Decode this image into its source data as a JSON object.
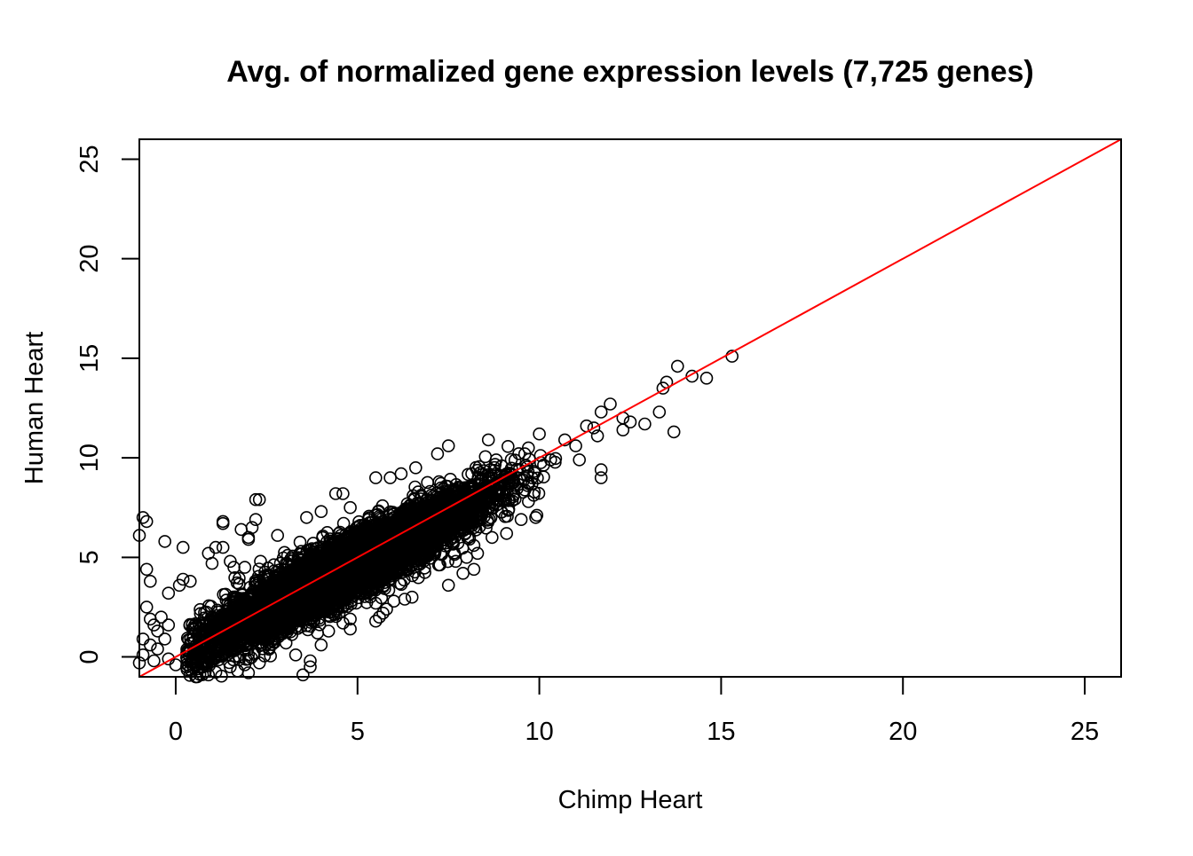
{
  "chart_data": {
    "type": "scatter",
    "title": "Avg. of normalized gene expression levels (7,725 genes)",
    "xlabel": "Chimp Heart",
    "ylabel": "Human Heart",
    "xlim": [
      -1,
      26
    ],
    "ylim": [
      -1,
      26
    ],
    "xticks": [
      0,
      5,
      10,
      15,
      20,
      25
    ],
    "yticks": [
      0,
      5,
      10,
      15,
      20,
      25
    ],
    "xtick_labels": [
      "0",
      "5",
      "10",
      "15",
      "20",
      "25"
    ],
    "ytick_labels": [
      "0",
      "5",
      "10",
      "15",
      "20",
      "25"
    ],
    "grid": false,
    "legend": "none",
    "n_genes": 7725,
    "marker": "open-circle",
    "marker_color": "#000000",
    "reference_line": {
      "type": "identity",
      "slope": 1,
      "intercept": 0,
      "color": "#ff0000"
    },
    "main_cloud": {
      "description_free_params": true,
      "x_center_mean": 4.6,
      "x_center_sd": 1.9,
      "x_range": [
        0.3,
        10.5
      ],
      "residual_sd": 0.75,
      "bias_per_unit": -0.06
    },
    "series": [
      {
        "values_x_y": [
          [
            15.3,
            15.1
          ],
          [
            13.8,
            14.6
          ],
          [
            14.2,
            14.1
          ],
          [
            14.6,
            14.0
          ],
          [
            13.5,
            13.8
          ],
          [
            13.4,
            13.5
          ],
          [
            13.3,
            12.3
          ],
          [
            13.7,
            11.3
          ],
          [
            12.9,
            11.7
          ],
          [
            12.5,
            11.8
          ],
          [
            12.3,
            12.0
          ],
          [
            12.3,
            11.4
          ],
          [
            11.95,
            12.7
          ],
          [
            11.7,
            12.3
          ],
          [
            11.5,
            11.5
          ],
          [
            11.3,
            11.6
          ],
          [
            11.6,
            11.1
          ],
          [
            11.7,
            9.4
          ],
          [
            11.7,
            9.0
          ],
          [
            11.0,
            10.6
          ],
          [
            10.7,
            10.9
          ],
          [
            10.0,
            11.2
          ],
          [
            9.7,
            10.5
          ],
          [
            9.6,
            10.2
          ],
          [
            11.1,
            9.9
          ],
          [
            9.8,
            9.0
          ],
          [
            9.8,
            8.7
          ],
          [
            9.7,
            7.8
          ],
          [
            9.5,
            6.9
          ],
          [
            9.9,
            7.0
          ],
          [
            8.6,
            10.9
          ],
          [
            7.5,
            10.6
          ],
          [
            7.2,
            10.2
          ],
          [
            6.6,
            9.5
          ],
          [
            6.2,
            9.2
          ],
          [
            5.9,
            9.0
          ],
          [
            5.5,
            9.0
          ],
          [
            4.6,
            8.2
          ],
          [
            4.4,
            8.2
          ],
          [
            4.8,
            7.5
          ],
          [
            4.0,
            7.3
          ],
          [
            3.6,
            7.0
          ],
          [
            2.3,
            7.9
          ],
          [
            2.2,
            7.9
          ],
          [
            2.2,
            6.9
          ],
          [
            2.1,
            6.5
          ],
          [
            1.3,
            6.8
          ],
          [
            1.3,
            6.7
          ],
          [
            1.8,
            6.4
          ],
          [
            2.0,
            6.0
          ],
          [
            2.0,
            5.9
          ],
          [
            2.8,
            6.1
          ],
          [
            1.3,
            5.5
          ],
          [
            1.1,
            5.5
          ],
          [
            0.9,
            5.2
          ],
          [
            1.0,
            4.7
          ],
          [
            1.5,
            4.8
          ],
          [
            1.6,
            4.5
          ],
          [
            1.9,
            4.5
          ],
          [
            0.2,
            5.5
          ],
          [
            -0.3,
            5.8
          ],
          [
            -1.0,
            6.1
          ],
          [
            -0.9,
            7.0
          ],
          [
            -0.8,
            6.8
          ],
          [
            -0.8,
            4.4
          ],
          [
            -0.7,
            3.8
          ],
          [
            -0.8,
            2.5
          ],
          [
            -0.2,
            3.2
          ],
          [
            0.1,
            3.6
          ],
          [
            0.2,
            3.9
          ],
          [
            0.4,
            3.8
          ],
          [
            -0.4,
            2.0
          ],
          [
            -0.7,
            1.9
          ],
          [
            -0.6,
            1.6
          ],
          [
            -0.5,
            1.3
          ],
          [
            -0.2,
            1.6
          ],
          [
            -0.9,
            0.9
          ],
          [
            -0.7,
            0.6
          ],
          [
            -0.5,
            0.4
          ],
          [
            -0.3,
            0.9
          ],
          [
            -0.9,
            0.1
          ],
          [
            -0.6,
            -0.2
          ],
          [
            -1.0,
            -0.3
          ],
          [
            -0.2,
            -0.1
          ],
          [
            0.0,
            -0.4
          ],
          [
            0.3,
            -0.5
          ],
          [
            0.6,
            -0.6
          ],
          [
            0.9,
            -0.9
          ],
          [
            1.5,
            -0.5
          ],
          [
            1.7,
            -0.7
          ],
          [
            1.9,
            -0.4
          ],
          [
            2.3,
            -0.3
          ],
          [
            2.0,
            -0.8
          ],
          [
            3.5,
            -0.9
          ],
          [
            3.7,
            -0.5
          ],
          [
            3.7,
            -0.2
          ],
          [
            3.3,
            0.1
          ],
          [
            3.9,
            1.2
          ],
          [
            4.0,
            0.6
          ],
          [
            4.6,
            1.7
          ],
          [
            4.8,
            1.4
          ],
          [
            4.8,
            1.9
          ],
          [
            5.6,
            2.0
          ],
          [
            5.7,
            2.2
          ],
          [
            5.5,
            2.7
          ],
          [
            6.0,
            2.8
          ],
          [
            6.3,
            2.9
          ],
          [
            6.5,
            3.0
          ],
          [
            5.8,
            2.4
          ],
          [
            5.5,
            1.8
          ],
          [
            4.6,
            2.5
          ],
          [
            7.5,
            3.6
          ],
          [
            8.2,
            4.4
          ],
          [
            7.7,
            4.8
          ],
          [
            8.0,
            5.0
          ],
          [
            8.2,
            5.6
          ],
          [
            8.7,
            6.0
          ],
          [
            9.1,
            6.2
          ],
          [
            8.3,
            5.2
          ],
          [
            7.9,
            4.2
          ]
        ]
      }
    ]
  }
}
